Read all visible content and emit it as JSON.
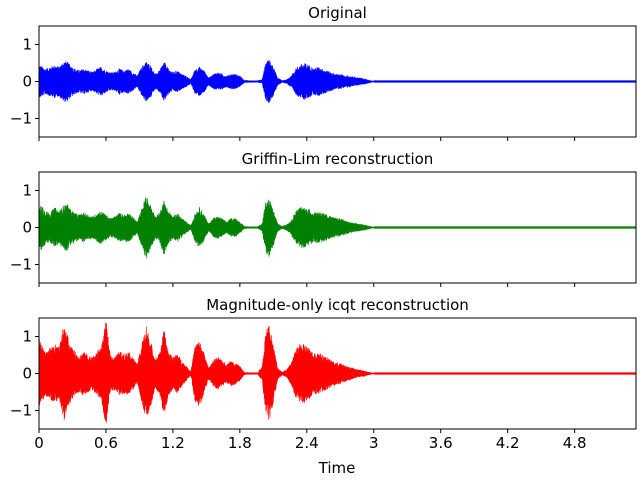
{
  "figure": {
    "xlabel": "Time"
  },
  "chart_data": [
    {
      "type": "area",
      "title": "Original",
      "color": "#0000ff",
      "xlim": [
        0,
        5.35
      ],
      "ylim": [
        -1.5,
        1.5
      ],
      "yticks": [
        -1,
        0,
        1
      ],
      "ytick_labels": [
        "−1",
        "0",
        "1"
      ],
      "signal_end": 3.0,
      "envelope": [
        [
          0.0,
          0.45
        ],
        [
          0.02,
          0.42
        ],
        [
          0.06,
          0.35
        ],
        [
          0.1,
          0.4
        ],
        [
          0.14,
          0.45
        ],
        [
          0.18,
          0.4
        ],
        [
          0.22,
          0.55
        ],
        [
          0.25,
          0.55
        ],
        [
          0.28,
          0.45
        ],
        [
          0.32,
          0.35
        ],
        [
          0.36,
          0.3
        ],
        [
          0.4,
          0.35
        ],
        [
          0.44,
          0.3
        ],
        [
          0.48,
          0.25
        ],
        [
          0.52,
          0.35
        ],
        [
          0.56,
          0.4
        ],
        [
          0.6,
          0.3
        ],
        [
          0.64,
          0.25
        ],
        [
          0.68,
          0.25
        ],
        [
          0.72,
          0.35
        ],
        [
          0.76,
          0.3
        ],
        [
          0.8,
          0.35
        ],
        [
          0.84,
          0.25
        ],
        [
          0.88,
          0.15
        ],
        [
          0.92,
          0.4
        ],
        [
          0.96,
          0.55
        ],
        [
          1.0,
          0.45
        ],
        [
          1.04,
          0.2
        ],
        [
          1.08,
          0.3
        ],
        [
          1.12,
          0.55
        ],
        [
          1.16,
          0.35
        ],
        [
          1.2,
          0.25
        ],
        [
          1.24,
          0.3
        ],
        [
          1.28,
          0.2
        ],
        [
          1.32,
          0.15
        ],
        [
          1.36,
          0.05
        ],
        [
          1.4,
          0.35
        ],
        [
          1.44,
          0.4
        ],
        [
          1.48,
          0.3
        ],
        [
          1.52,
          0.1
        ],
        [
          1.56,
          0.2
        ],
        [
          1.6,
          0.25
        ],
        [
          1.64,
          0.2
        ],
        [
          1.68,
          0.15
        ],
        [
          1.72,
          0.2
        ],
        [
          1.76,
          0.2
        ],
        [
          1.8,
          0.15
        ],
        [
          1.84,
          0.03
        ],
        [
          1.88,
          0.02
        ],
        [
          1.92,
          0.02
        ],
        [
          1.96,
          0.02
        ],
        [
          2.0,
          0.05
        ],
        [
          2.03,
          0.5
        ],
        [
          2.06,
          0.6
        ],
        [
          2.1,
          0.4
        ],
        [
          2.14,
          0.1
        ],
        [
          2.18,
          0.02
        ],
        [
          2.22,
          0.05
        ],
        [
          2.26,
          0.15
        ],
        [
          2.3,
          0.35
        ],
        [
          2.34,
          0.45
        ],
        [
          2.38,
          0.5
        ],
        [
          2.42,
          0.45
        ],
        [
          2.46,
          0.35
        ],
        [
          2.5,
          0.4
        ],
        [
          2.54,
          0.35
        ],
        [
          2.58,
          0.3
        ],
        [
          2.62,
          0.25
        ],
        [
          2.66,
          0.2
        ],
        [
          2.7,
          0.2
        ],
        [
          2.74,
          0.15
        ],
        [
          2.78,
          0.15
        ],
        [
          2.82,
          0.12
        ],
        [
          2.86,
          0.1
        ],
        [
          2.9,
          0.08
        ],
        [
          2.94,
          0.05
        ],
        [
          2.98,
          0.02
        ],
        [
          3.0,
          0.0
        ]
      ]
    },
    {
      "type": "area",
      "title": "Griffin-Lim reconstruction",
      "color": "#008000",
      "xlim": [
        0,
        5.35
      ],
      "ylim": [
        -1.5,
        1.5
      ],
      "yticks": [
        -1,
        0,
        1
      ],
      "ytick_labels": [
        "−1",
        "0",
        "1"
      ],
      "signal_end": 3.0,
      "envelope": [
        [
          0.0,
          0.5
        ],
        [
          0.02,
          0.65
        ],
        [
          0.06,
          0.45
        ],
        [
          0.1,
          0.4
        ],
        [
          0.14,
          0.55
        ],
        [
          0.18,
          0.45
        ],
        [
          0.22,
          0.6
        ],
        [
          0.25,
          0.65
        ],
        [
          0.28,
          0.5
        ],
        [
          0.32,
          0.4
        ],
        [
          0.36,
          0.35
        ],
        [
          0.4,
          0.4
        ],
        [
          0.44,
          0.35
        ],
        [
          0.48,
          0.3
        ],
        [
          0.52,
          0.4
        ],
        [
          0.56,
          0.45
        ],
        [
          0.6,
          0.35
        ],
        [
          0.64,
          0.25
        ],
        [
          0.68,
          0.3
        ],
        [
          0.72,
          0.4
        ],
        [
          0.76,
          0.35
        ],
        [
          0.8,
          0.4
        ],
        [
          0.84,
          0.3
        ],
        [
          0.88,
          0.15
        ],
        [
          0.92,
          0.5
        ],
        [
          0.96,
          0.9
        ],
        [
          1.0,
          0.6
        ],
        [
          1.04,
          0.3
        ],
        [
          1.08,
          0.4
        ],
        [
          1.12,
          0.75
        ],
        [
          1.16,
          0.45
        ],
        [
          1.2,
          0.3
        ],
        [
          1.24,
          0.4
        ],
        [
          1.28,
          0.25
        ],
        [
          1.32,
          0.15
        ],
        [
          1.36,
          0.05
        ],
        [
          1.4,
          0.4
        ],
        [
          1.44,
          0.55
        ],
        [
          1.48,
          0.35
        ],
        [
          1.52,
          0.1
        ],
        [
          1.56,
          0.25
        ],
        [
          1.6,
          0.3
        ],
        [
          1.64,
          0.25
        ],
        [
          1.68,
          0.15
        ],
        [
          1.72,
          0.25
        ],
        [
          1.76,
          0.25
        ],
        [
          1.8,
          0.15
        ],
        [
          1.84,
          0.03
        ],
        [
          1.88,
          0.02
        ],
        [
          1.92,
          0.02
        ],
        [
          1.96,
          0.02
        ],
        [
          2.0,
          0.1
        ],
        [
          2.03,
          0.7
        ],
        [
          2.06,
          0.8
        ],
        [
          2.1,
          0.5
        ],
        [
          2.14,
          0.1
        ],
        [
          2.18,
          0.03
        ],
        [
          2.22,
          0.08
        ],
        [
          2.26,
          0.2
        ],
        [
          2.3,
          0.45
        ],
        [
          2.34,
          0.55
        ],
        [
          2.38,
          0.55
        ],
        [
          2.42,
          0.5
        ],
        [
          2.46,
          0.4
        ],
        [
          2.5,
          0.45
        ],
        [
          2.54,
          0.4
        ],
        [
          2.58,
          0.35
        ],
        [
          2.62,
          0.3
        ],
        [
          2.66,
          0.25
        ],
        [
          2.7,
          0.25
        ],
        [
          2.74,
          0.2
        ],
        [
          2.78,
          0.15
        ],
        [
          2.82,
          0.12
        ],
        [
          2.86,
          0.1
        ],
        [
          2.9,
          0.08
        ],
        [
          2.94,
          0.05
        ],
        [
          2.98,
          0.02
        ],
        [
          3.0,
          0.0
        ]
      ]
    },
    {
      "type": "area",
      "title": "Magnitude-only icqt reconstruction",
      "color": "#ff0000",
      "xlim": [
        0,
        5.35
      ],
      "ylim": [
        -1.5,
        1.5
      ],
      "yticks": [
        -1,
        0,
        1
      ],
      "ytick_labels": [
        "−1",
        "0",
        "1"
      ],
      "xticks": [
        0,
        0.6,
        1.2,
        1.8,
        2.4,
        3.0,
        3.6,
        4.2,
        4.8
      ],
      "xtick_labels": [
        "0",
        "0.6",
        "1.2",
        "1.8",
        "2.4",
        "3",
        "3.6",
        "4.2",
        "4.8"
      ],
      "signal_end": 3.0,
      "envelope": [
        [
          0.0,
          1.0
        ],
        [
          0.02,
          0.8
        ],
        [
          0.06,
          0.6
        ],
        [
          0.1,
          0.7
        ],
        [
          0.14,
          0.8
        ],
        [
          0.18,
          0.7
        ],
        [
          0.22,
          1.3
        ],
        [
          0.25,
          1.1
        ],
        [
          0.28,
          0.8
        ],
        [
          0.32,
          0.6
        ],
        [
          0.36,
          0.5
        ],
        [
          0.4,
          0.6
        ],
        [
          0.44,
          0.5
        ],
        [
          0.48,
          0.45
        ],
        [
          0.52,
          0.6
        ],
        [
          0.56,
          0.75
        ],
        [
          0.6,
          1.45
        ],
        [
          0.64,
          0.5
        ],
        [
          0.68,
          0.45
        ],
        [
          0.72,
          0.6
        ],
        [
          0.76,
          0.55
        ],
        [
          0.8,
          0.6
        ],
        [
          0.84,
          0.45
        ],
        [
          0.88,
          0.25
        ],
        [
          0.92,
          0.8
        ],
        [
          0.96,
          1.3
        ],
        [
          1.0,
          0.9
        ],
        [
          1.04,
          0.4
        ],
        [
          1.08,
          0.55
        ],
        [
          1.12,
          1.2
        ],
        [
          1.16,
          0.6
        ],
        [
          1.2,
          0.45
        ],
        [
          1.24,
          0.55
        ],
        [
          1.28,
          0.35
        ],
        [
          1.32,
          0.2
        ],
        [
          1.36,
          0.05
        ],
        [
          1.4,
          0.8
        ],
        [
          1.44,
          0.9
        ],
        [
          1.48,
          0.55
        ],
        [
          1.52,
          0.15
        ],
        [
          1.56,
          0.35
        ],
        [
          1.6,
          0.45
        ],
        [
          1.64,
          0.35
        ],
        [
          1.68,
          0.25
        ],
        [
          1.72,
          0.35
        ],
        [
          1.76,
          0.3
        ],
        [
          1.8,
          0.2
        ],
        [
          1.84,
          0.03
        ],
        [
          1.88,
          0.02
        ],
        [
          1.92,
          0.02
        ],
        [
          1.96,
          0.02
        ],
        [
          2.0,
          0.2
        ],
        [
          2.03,
          1.1
        ],
        [
          2.06,
          1.35
        ],
        [
          2.1,
          0.8
        ],
        [
          2.14,
          0.15
        ],
        [
          2.18,
          0.04
        ],
        [
          2.22,
          0.1
        ],
        [
          2.26,
          0.3
        ],
        [
          2.3,
          0.65
        ],
        [
          2.34,
          0.8
        ],
        [
          2.38,
          0.8
        ],
        [
          2.42,
          0.7
        ],
        [
          2.46,
          0.55
        ],
        [
          2.5,
          0.6
        ],
        [
          2.54,
          0.5
        ],
        [
          2.58,
          0.45
        ],
        [
          2.62,
          0.35
        ],
        [
          2.66,
          0.3
        ],
        [
          2.7,
          0.28
        ],
        [
          2.74,
          0.22
        ],
        [
          2.78,
          0.18
        ],
        [
          2.82,
          0.14
        ],
        [
          2.86,
          0.1
        ],
        [
          2.9,
          0.08
        ],
        [
          2.94,
          0.05
        ],
        [
          2.98,
          0.02
        ],
        [
          3.0,
          0.0
        ]
      ]
    }
  ]
}
